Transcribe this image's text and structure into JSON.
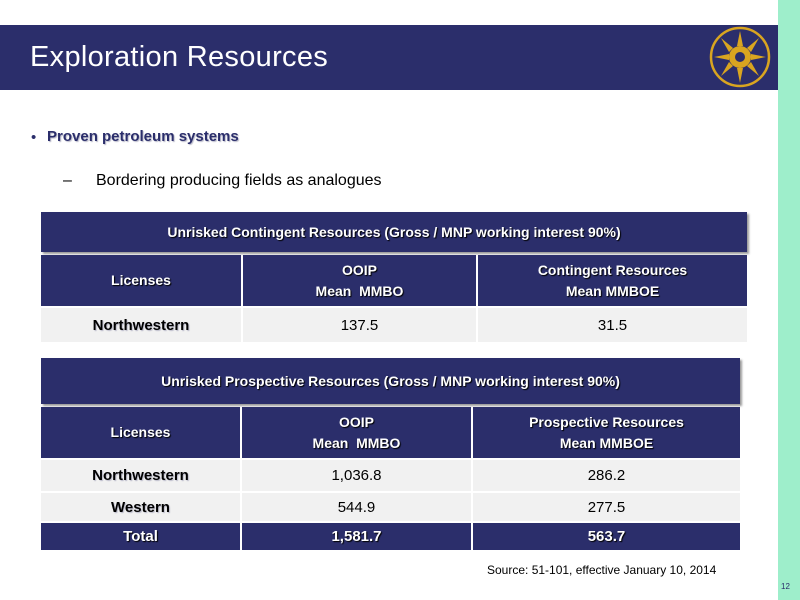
{
  "slide": {
    "title": "Exploration Resources",
    "bullet": "Proven petroleum systems",
    "sub_dash": "–",
    "sub_bullet": "Bordering producing fields as analogues",
    "source": "Source: 51-101, effective January 10, 2014",
    "page_number": "12"
  },
  "contingent_table": {
    "title": "Unrisked Contingent Resources (Gross / MNP working interest 90%)",
    "headers": [
      {
        "line1": "Licenses",
        "line2": ""
      },
      {
        "line1": "OOIP",
        "line2": "Mean  MMBO"
      },
      {
        "line1": "Contingent Resources",
        "line2": "Mean MMBOE"
      }
    ],
    "rows": [
      [
        "Northwestern",
        "137.5",
        "31.5"
      ]
    ]
  },
  "prospective_table": {
    "title": "Unrisked Prospective Resources (Gross / MNP working interest 90%)",
    "headers": [
      {
        "line1": "Licenses",
        "line2": ""
      },
      {
        "line1": "OOIP",
        "line2": "Mean  MMBO"
      },
      {
        "line1": "Prospective Resources",
        "line2": "Mean MMBOE"
      }
    ],
    "rows": [
      [
        "Northwestern",
        "1,036.8",
        "286.2"
      ],
      [
        "Western",
        "544.9",
        "277.5"
      ]
    ],
    "total": [
      "Total",
      "1,581.7",
      "563.7"
    ]
  },
  "colors": {
    "navy": "#2b2e6b",
    "gold": "#d9a520",
    "accent_strip": "#9eeecb",
    "row_bg": "#f1f1f1"
  },
  "icons": {
    "logo": "sun-logo-icon"
  }
}
